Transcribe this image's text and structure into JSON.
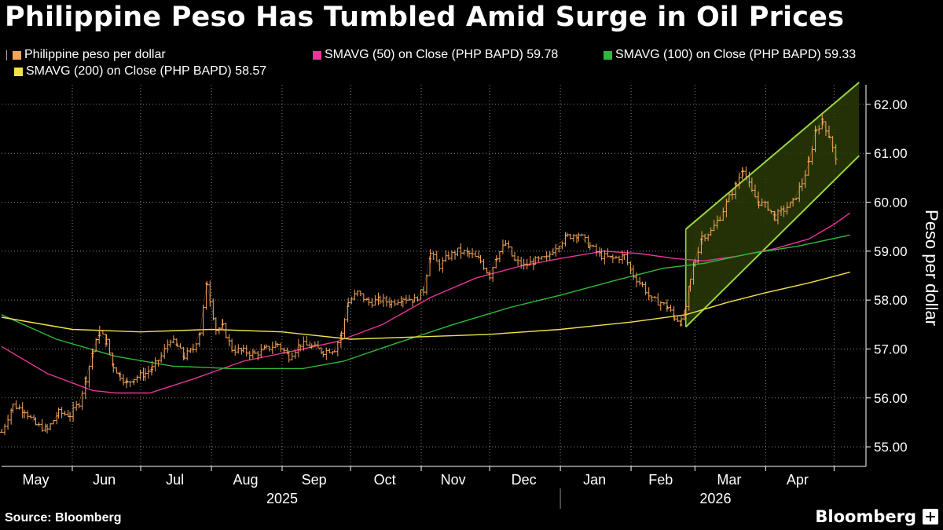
{
  "page_title": "Philippine Peso Has Tumbled Amid Surge in Oil Prices",
  "source": "Source: Bloomberg",
  "brand": "Bloomberg",
  "legend": {
    "price": {
      "label": "Philippine peso per dollar",
      "color": "#f5a55a"
    },
    "sma50": {
      "label": "SMAVG (50)  on Close (PHP BAPD) 59.78",
      "color": "#e8359a"
    },
    "sma100": {
      "label": "SMAVG (100)  on Close (PHP BAPD) 59.33",
      "color": "#2fb83a"
    },
    "sma200": {
      "label": "SMAVG (200)  on Close (PHP BAPD) 58.57",
      "color": "#f2e24a"
    }
  },
  "chart_data": {
    "type": "line",
    "style": "ohlc",
    "ylabel": "Peso per dollar",
    "ylim": [
      54.6,
      62.4
    ],
    "yticks": [
      55,
      56,
      57,
      58,
      59,
      60,
      61,
      62
    ],
    "ytick_labels": [
      "55.00",
      "56.00",
      "57.00",
      "58.00",
      "59.00",
      "60.00",
      "61.00",
      "62.00"
    ],
    "grid": true,
    "x_start": "2025-05-01",
    "x_end": "2026-05-15",
    "month_labels": [
      {
        "label": "May",
        "date": "2025-05-16"
      },
      {
        "label": "Jun",
        "date": "2025-06-15"
      },
      {
        "label": "Jul",
        "date": "2025-07-16"
      },
      {
        "label": "Aug",
        "date": "2025-08-16"
      },
      {
        "label": "Sep",
        "date": "2025-09-15"
      },
      {
        "label": "Oct",
        "date": "2025-10-16"
      },
      {
        "label": "Nov",
        "date": "2025-11-15"
      },
      {
        "label": "Dec",
        "date": "2025-12-16"
      },
      {
        "label": "Jan",
        "date": "2026-01-16"
      },
      {
        "label": "Feb",
        "date": "2026-02-14"
      },
      {
        "label": "Mar",
        "date": "2026-03-16"
      },
      {
        "label": "Apr",
        "date": "2026-04-15"
      }
    ],
    "month_boundaries": [
      "2025-06-01",
      "2025-07-01",
      "2025-08-01",
      "2025-09-01",
      "2025-10-01",
      "2025-11-01",
      "2025-12-01",
      "2026-01-01",
      "2026-02-01",
      "2026-03-01",
      "2026-04-01",
      "2026-05-01"
    ],
    "year_labels": [
      {
        "label": "2025",
        "date": "2025-09-01"
      },
      {
        "label": "2026",
        "date": "2026-03-10"
      }
    ],
    "year_divider": "2026-01-01",
    "series": [
      {
        "name": "Philippine peso per dollar",
        "kind": "price",
        "points": [
          [
            "2025-05-01",
            55.3
          ],
          [
            "2025-05-06",
            55.85
          ],
          [
            "2025-05-11",
            55.75
          ],
          [
            "2025-05-16",
            55.45
          ],
          [
            "2025-05-21",
            55.35
          ],
          [
            "2025-05-26",
            55.7
          ],
          [
            "2025-05-31",
            55.65
          ],
          [
            "2025-06-04",
            55.9
          ],
          [
            "2025-06-07",
            56.4
          ],
          [
            "2025-06-10",
            56.95
          ],
          [
            "2025-06-13",
            57.35
          ],
          [
            "2025-06-16",
            57.15
          ],
          [
            "2025-06-19",
            56.65
          ],
          [
            "2025-06-22",
            56.45
          ],
          [
            "2025-06-25",
            56.3
          ],
          [
            "2025-06-28",
            56.4
          ],
          [
            "2025-07-03",
            56.5
          ],
          [
            "2025-07-06",
            56.6
          ],
          [
            "2025-07-10",
            56.85
          ],
          [
            "2025-07-14",
            57.2
          ],
          [
            "2025-07-17",
            57.05
          ],
          [
            "2025-07-20",
            56.85
          ],
          [
            "2025-07-24",
            57.0
          ],
          [
            "2025-07-27",
            57.35
          ],
          [
            "2025-07-30",
            58.35
          ],
          [
            "2025-08-03",
            57.4
          ],
          [
            "2025-08-06",
            57.45
          ],
          [
            "2025-08-10",
            57.0
          ],
          [
            "2025-08-15",
            56.95
          ],
          [
            "2025-08-20",
            56.9
          ],
          [
            "2025-08-25",
            57.0
          ],
          [
            "2025-08-30",
            57.1
          ],
          [
            "2025-09-04",
            56.85
          ],
          [
            "2025-09-09",
            57.1
          ],
          [
            "2025-09-14",
            57.05
          ],
          [
            "2025-09-19",
            56.95
          ],
          [
            "2025-09-24",
            57.0
          ],
          [
            "2025-09-27",
            57.3
          ],
          [
            "2025-09-30",
            57.95
          ],
          [
            "2025-10-04",
            58.15
          ],
          [
            "2025-10-09",
            57.95
          ],
          [
            "2025-10-14",
            58.0
          ],
          [
            "2025-10-19",
            57.95
          ],
          [
            "2025-10-24",
            58.05
          ],
          [
            "2025-10-29",
            58.0
          ],
          [
            "2025-11-02",
            58.2
          ],
          [
            "2025-11-05",
            58.95
          ],
          [
            "2025-11-09",
            58.7
          ],
          [
            "2025-11-13",
            58.9
          ],
          [
            "2025-11-17",
            59.0
          ],
          [
            "2025-11-22",
            58.95
          ],
          [
            "2025-11-27",
            58.8
          ],
          [
            "2025-12-01",
            58.5
          ],
          [
            "2025-12-04",
            58.9
          ],
          [
            "2025-12-08",
            59.15
          ],
          [
            "2025-12-12",
            58.8
          ],
          [
            "2025-12-16",
            58.7
          ],
          [
            "2025-12-21",
            58.8
          ],
          [
            "2025-12-26",
            58.85
          ],
          [
            "2025-12-30",
            59.1
          ],
          [
            "2026-01-04",
            59.3
          ],
          [
            "2026-01-09",
            59.35
          ],
          [
            "2026-01-14",
            59.1
          ],
          [
            "2026-01-19",
            58.9
          ],
          [
            "2026-01-24",
            58.85
          ],
          [
            "2026-01-29",
            58.9
          ],
          [
            "2026-02-02",
            58.5
          ],
          [
            "2026-02-06",
            58.3
          ],
          [
            "2026-02-10",
            58.0
          ],
          [
            "2026-02-14",
            57.95
          ],
          [
            "2026-02-17",
            57.85
          ],
          [
            "2026-02-20",
            57.65
          ],
          [
            "2026-02-23",
            57.55
          ],
          [
            "2026-02-25",
            57.8
          ],
          [
            "2026-02-27",
            58.4
          ],
          [
            "2026-03-01",
            58.8
          ],
          [
            "2026-03-04",
            59.3
          ],
          [
            "2026-03-08",
            59.4
          ],
          [
            "2026-03-12",
            59.7
          ],
          [
            "2026-03-16",
            60.1
          ],
          [
            "2026-03-19",
            60.35
          ],
          [
            "2026-03-22",
            60.7
          ],
          [
            "2026-03-26",
            60.2
          ],
          [
            "2026-03-29",
            60.0
          ],
          [
            "2026-04-02",
            59.9
          ],
          [
            "2026-04-05",
            59.7
          ],
          [
            "2026-04-09",
            59.85
          ],
          [
            "2026-04-13",
            60.0
          ],
          [
            "2026-04-17",
            60.4
          ],
          [
            "2026-04-20",
            60.8
          ],
          [
            "2026-04-23",
            61.5
          ],
          [
            "2026-04-26",
            61.65
          ],
          [
            "2026-04-29",
            61.35
          ],
          [
            "2026-05-02",
            60.8
          ]
        ]
      },
      {
        "name": "SMAVG (50)  on Close (PHP BAPD)",
        "kind": "sma50",
        "points": [
          [
            "2025-05-01",
            57.05
          ],
          [
            "2025-05-21",
            56.5
          ],
          [
            "2025-06-10",
            56.15
          ],
          [
            "2025-06-20",
            56.1
          ],
          [
            "2025-07-05",
            56.1
          ],
          [
            "2025-07-25",
            56.4
          ],
          [
            "2025-08-15",
            56.75
          ],
          [
            "2025-09-05",
            56.95
          ],
          [
            "2025-09-25",
            57.15
          ],
          [
            "2025-10-15",
            57.5
          ],
          [
            "2025-11-05",
            58.05
          ],
          [
            "2025-11-25",
            58.45
          ],
          [
            "2025-12-15",
            58.7
          ],
          [
            "2026-01-01",
            58.85
          ],
          [
            "2026-01-20",
            59.0
          ],
          [
            "2026-02-05",
            58.95
          ],
          [
            "2026-02-20",
            58.85
          ],
          [
            "2026-03-05",
            58.8
          ],
          [
            "2026-03-20",
            58.9
          ],
          [
            "2026-04-05",
            59.05
          ],
          [
            "2026-04-20",
            59.25
          ],
          [
            "2026-05-01",
            59.55
          ],
          [
            "2026-05-08",
            59.78
          ]
        ]
      },
      {
        "name": "SMAVG (100)  on Close (PHP BAPD)",
        "kind": "sma100",
        "points": [
          [
            "2025-05-01",
            57.7
          ],
          [
            "2025-05-25",
            57.2
          ],
          [
            "2025-06-20",
            56.85
          ],
          [
            "2025-07-15",
            56.65
          ],
          [
            "2025-08-10",
            56.6
          ],
          [
            "2025-09-10",
            56.6
          ],
          [
            "2025-09-28",
            56.75
          ],
          [
            "2025-10-20",
            57.1
          ],
          [
            "2025-11-15",
            57.5
          ],
          [
            "2025-12-10",
            57.85
          ],
          [
            "2026-01-01",
            58.1
          ],
          [
            "2026-01-25",
            58.4
          ],
          [
            "2026-02-15",
            58.65
          ],
          [
            "2026-03-05",
            58.75
          ],
          [
            "2026-03-25",
            58.95
          ],
          [
            "2026-04-15",
            59.1
          ],
          [
            "2026-05-08",
            59.33
          ]
        ]
      },
      {
        "name": "SMAVG (200)  on Close (PHP BAPD)",
        "kind": "sma200",
        "points": [
          [
            "2025-05-01",
            57.65
          ],
          [
            "2025-06-01",
            57.4
          ],
          [
            "2025-07-01",
            57.35
          ],
          [
            "2025-08-01",
            57.4
          ],
          [
            "2025-09-01",
            57.35
          ],
          [
            "2025-10-01",
            57.2
          ],
          [
            "2025-11-01",
            57.25
          ],
          [
            "2025-12-01",
            57.3
          ],
          [
            "2026-01-01",
            57.4
          ],
          [
            "2026-02-01",
            57.55
          ],
          [
            "2026-02-25",
            57.7
          ],
          [
            "2026-03-15",
            57.95
          ],
          [
            "2026-04-01",
            58.15
          ],
          [
            "2026-04-20",
            58.35
          ],
          [
            "2026-05-08",
            58.57
          ]
        ]
      }
    ],
    "annotations": [
      {
        "type": "channel",
        "start_date": "2026-02-25",
        "end_date": "2026-05-12",
        "upper": [
          59.45,
          62.45
        ],
        "lower": [
          57.45,
          60.95
        ]
      }
    ]
  }
}
